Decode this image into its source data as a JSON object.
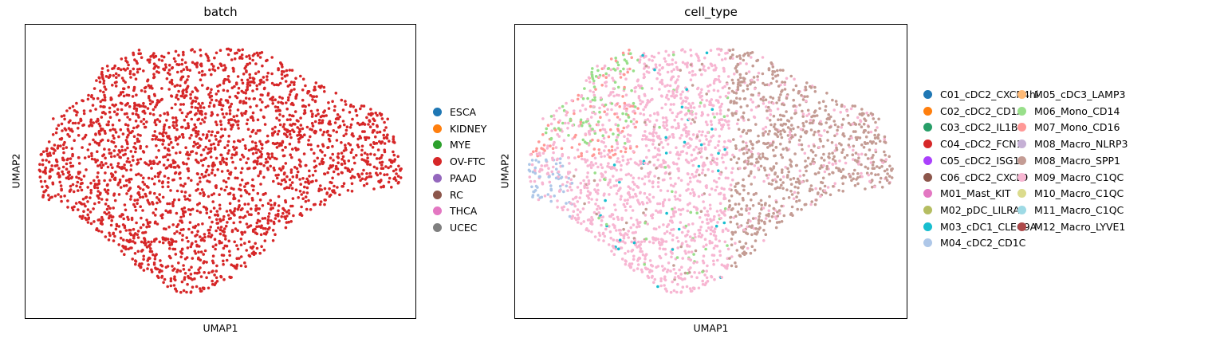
{
  "chart_data": [
    {
      "type": "scatter",
      "title": "batch",
      "xlabel": "UMAP1",
      "ylabel": "UMAP2",
      "grid": false,
      "legend_position": "right",
      "legend": [
        {
          "label": "ESCA",
          "color": "#1f77b4"
        },
        {
          "label": "KIDNEY",
          "color": "#ff7f0e"
        },
        {
          "label": "MYE",
          "color": "#2ca02c"
        },
        {
          "label": "OV-FTC",
          "color": "#d62728"
        },
        {
          "label": "PAAD",
          "color": "#9467bd"
        },
        {
          "label": "RC",
          "color": "#8c564b"
        },
        {
          "label": "THCA",
          "color": "#e377c2"
        },
        {
          "label": "UCEC",
          "color": "#7f7f7f"
        }
      ],
      "shown_category": "OV-FTC"
    },
    {
      "type": "scatter",
      "title": "cell_type",
      "xlabel": "UMAP1",
      "ylabel": "UMAP2",
      "grid": false,
      "legend_position": "right (2 columns)",
      "legend": [
        {
          "label": "C01_cDC2_CXCR4hi",
          "color": "#1f77b4"
        },
        {
          "label": "C02_cDC2_CD1A",
          "color": "#ff7f0e"
        },
        {
          "label": "C03_cDC2_IL1B",
          "color": "#279e68"
        },
        {
          "label": "C04_cDC2_FCN1",
          "color": "#d62728"
        },
        {
          "label": "C05_cDC2_ISG15",
          "color": "#aa40fc"
        },
        {
          "label": "C06_cDC2_CXCL9",
          "color": "#8c564b"
        },
        {
          "label": "M01_Mast_KIT",
          "color": "#e377c2"
        },
        {
          "label": "M02_pDC_LILRA4",
          "color": "#b5bd61"
        },
        {
          "label": "M03_cDC1_CLEC9A",
          "color": "#17becf"
        },
        {
          "label": "M04_cDC2_CD1C",
          "color": "#aec7e8"
        },
        {
          "label": "M05_cDC3_LAMP3",
          "color": "#ffbb78"
        },
        {
          "label": "M06_Mono_CD14",
          "color": "#98df8a"
        },
        {
          "label": "M07_Mono_CD16",
          "color": "#ff9896"
        },
        {
          "label": "M08_Macro_NLRP3",
          "color": "#c5b0d5"
        },
        {
          "label": "M08_Macro_SPP1",
          "color": "#c49c94"
        },
        {
          "label": "M09_Macro_C1QC",
          "color": "#f7b6d2"
        },
        {
          "label": "M10_Macro_C1QC",
          "color": "#dbdb8d"
        },
        {
          "label": "M11_Macro_C1QC",
          "color": "#9edae5"
        },
        {
          "label": "M12_Macro_LYVE1",
          "color": "#ad494a"
        }
      ]
    }
  ]
}
